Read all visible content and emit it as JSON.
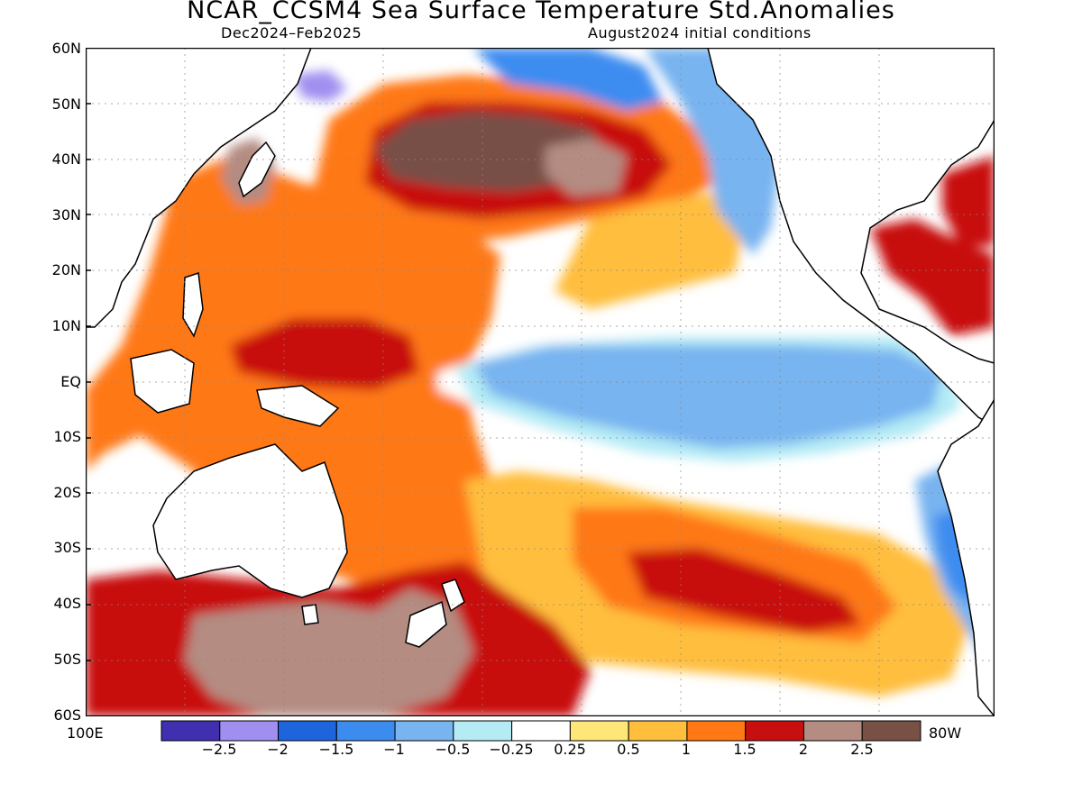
{
  "title": "NCAR_CCSM4 Sea Surface Temperature Std.Anomalies",
  "subtitle_left": "Dec2024–Feb2025",
  "subtitle_right": "August2024 initial conditions",
  "lat_labels": [
    "60N",
    "50N",
    "40N",
    "30N",
    "20N",
    "10N",
    "EQ",
    "10S",
    "20S",
    "30S",
    "40S",
    "50S",
    "60S"
  ],
  "lon_left_label": "100E",
  "lon_right_label": "80W",
  "colorbar": {
    "tick_labels": [
      "−2.5",
      "−2",
      "−1.5",
      "−1",
      "−0.5",
      "−0.25",
      "0.25",
      "0.5",
      "1",
      "1.5",
      "2",
      "2.5"
    ],
    "colors": [
      "#4030b0",
      "#a08ff0",
      "#1e64dc",
      "#3c8cf0",
      "#78b4f0",
      "#b4ebf5",
      "#ffffff",
      "#ffe678",
      "#ffbe3c",
      "#ff7814",
      "#c80f0f",
      "#b48c82",
      "#785046"
    ]
  }
}
